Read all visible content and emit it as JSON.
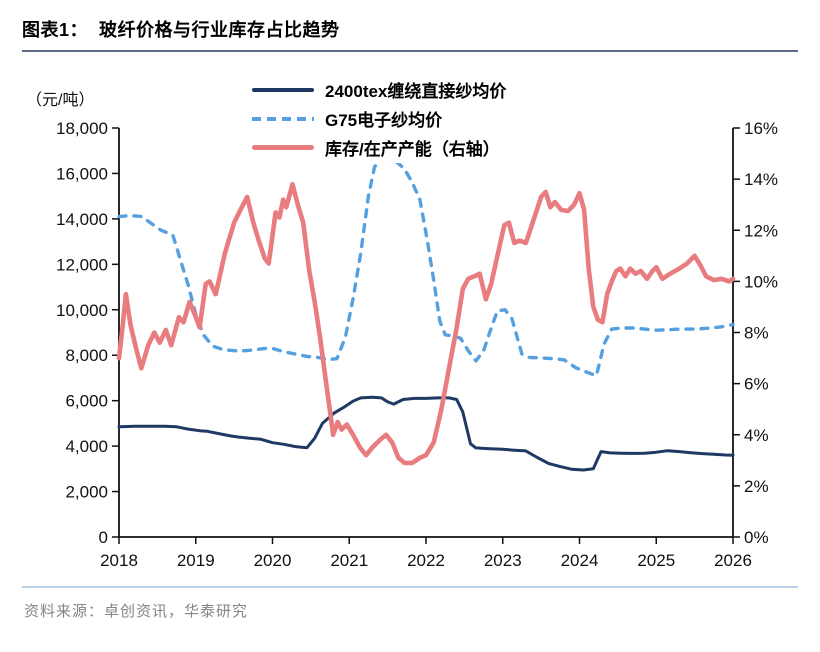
{
  "header": {
    "title": "图表1：  玻纤价格与行业库存占比趋势"
  },
  "chart": {
    "unit_label": "（元/吨）",
    "legend": [
      {
        "label": "2400tex缠绕直接纱均价",
        "color": "#1F3864",
        "style": "solid"
      },
      {
        "label": "G75电子纱均价",
        "color": "#56A0E0",
        "style": "dashed"
      },
      {
        "label": "库存/在产产能（右轴）",
        "color": "#E97C7E",
        "style": "solid-thick"
      }
    ]
  },
  "chart_data": {
    "type": "line",
    "title": "玻纤价格与行业库存占比趋势",
    "x_range": [
      2018,
      2026
    ],
    "x_ticks": [
      2018,
      2019,
      2020,
      2021,
      2022,
      2023,
      2024,
      2025,
      2026
    ],
    "grid": false,
    "legend_position": "top-center",
    "left_axis": {
      "title": "（元/吨）",
      "min": 0,
      "max": 18000,
      "tick_step": 2000,
      "tick_labels": [
        "0",
        "2,000",
        "4,000",
        "6,000",
        "8,000",
        "10,000",
        "12,000",
        "14,000",
        "16,000",
        "18,000"
      ]
    },
    "right_axis": {
      "min": 0,
      "max": 16,
      "tick_step": 2,
      "tick_labels": [
        "0%",
        "2%",
        "4%",
        "6%",
        "8%",
        "10%",
        "12%",
        "14%",
        "16%"
      ]
    },
    "series": [
      {
        "name": "2400tex缠绕直接纱均价",
        "axis": "left",
        "color": "#1F3864",
        "width": 3,
        "dash": null,
        "points": [
          [
            2018.0,
            4850
          ],
          [
            2018.2,
            4870
          ],
          [
            2018.4,
            4870
          ],
          [
            2018.6,
            4870
          ],
          [
            2018.75,
            4850
          ],
          [
            2018.9,
            4750
          ],
          [
            2019.05,
            4680
          ],
          [
            2019.15,
            4650
          ],
          [
            2019.3,
            4550
          ],
          [
            2019.45,
            4450
          ],
          [
            2019.55,
            4400
          ],
          [
            2019.7,
            4350
          ],
          [
            2019.85,
            4300
          ],
          [
            2020.0,
            4150
          ],
          [
            2020.15,
            4080
          ],
          [
            2020.3,
            3980
          ],
          [
            2020.45,
            3930
          ],
          [
            2020.55,
            4350
          ],
          [
            2020.65,
            5000
          ],
          [
            2020.8,
            5450
          ],
          [
            2020.95,
            5750
          ],
          [
            2021.05,
            5980
          ],
          [
            2021.15,
            6120
          ],
          [
            2021.3,
            6150
          ],
          [
            2021.42,
            6120
          ],
          [
            2021.5,
            5950
          ],
          [
            2021.58,
            5850
          ],
          [
            2021.7,
            6050
          ],
          [
            2021.85,
            6100
          ],
          [
            2022.0,
            6100
          ],
          [
            2022.15,
            6120
          ],
          [
            2022.3,
            6120
          ],
          [
            2022.4,
            6050
          ],
          [
            2022.48,
            5500
          ],
          [
            2022.58,
            4100
          ],
          [
            2022.65,
            3920
          ],
          [
            2022.8,
            3890
          ],
          [
            2023.0,
            3860
          ],
          [
            2023.15,
            3820
          ],
          [
            2023.3,
            3790
          ],
          [
            2023.45,
            3500
          ],
          [
            2023.6,
            3230
          ],
          [
            2023.75,
            3100
          ],
          [
            2023.9,
            2980
          ],
          [
            2024.05,
            2950
          ],
          [
            2024.18,
            3000
          ],
          [
            2024.28,
            3760
          ],
          [
            2024.4,
            3700
          ],
          [
            2024.55,
            3690
          ],
          [
            2024.7,
            3680
          ],
          [
            2024.85,
            3690
          ],
          [
            2025.0,
            3730
          ],
          [
            2025.15,
            3800
          ],
          [
            2025.3,
            3760
          ],
          [
            2025.45,
            3710
          ],
          [
            2025.6,
            3670
          ],
          [
            2025.75,
            3640
          ],
          [
            2025.9,
            3610
          ],
          [
            2026.0,
            3600
          ]
        ]
      },
      {
        "name": "G75电子纱均价",
        "axis": "left",
        "color": "#56A0E0",
        "width": 3.4,
        "dash": [
          7,
          8
        ],
        "points": [
          [
            2018.0,
            14100
          ],
          [
            2018.15,
            14150
          ],
          [
            2018.3,
            14100
          ],
          [
            2018.42,
            13800
          ],
          [
            2018.55,
            13500
          ],
          [
            2018.7,
            13300
          ],
          [
            2018.8,
            12200
          ],
          [
            2018.9,
            11100
          ],
          [
            2019.0,
            9800
          ],
          [
            2019.1,
            8900
          ],
          [
            2019.22,
            8400
          ],
          [
            2019.35,
            8250
          ],
          [
            2019.5,
            8200
          ],
          [
            2019.65,
            8200
          ],
          [
            2019.8,
            8250
          ],
          [
            2019.9,
            8300
          ],
          [
            2020.0,
            8300
          ],
          [
            2020.15,
            8150
          ],
          [
            2020.3,
            8050
          ],
          [
            2020.45,
            7950
          ],
          [
            2020.6,
            7900
          ],
          [
            2020.72,
            7800
          ],
          [
            2020.84,
            7850
          ],
          [
            2020.95,
            8800
          ],
          [
            2021.05,
            10500
          ],
          [
            2021.15,
            12500
          ],
          [
            2021.25,
            15000
          ],
          [
            2021.33,
            16300
          ],
          [
            2021.42,
            16550
          ],
          [
            2021.52,
            16600
          ],
          [
            2021.62,
            16500
          ],
          [
            2021.72,
            16200
          ],
          [
            2021.82,
            15600
          ],
          [
            2021.92,
            14850
          ],
          [
            2022.02,
            13000
          ],
          [
            2022.1,
            11300
          ],
          [
            2022.18,
            9500
          ],
          [
            2022.25,
            8900
          ],
          [
            2022.35,
            8850
          ],
          [
            2022.45,
            8750
          ],
          [
            2022.55,
            8200
          ],
          [
            2022.65,
            7750
          ],
          [
            2022.75,
            8200
          ],
          [
            2022.85,
            9200
          ],
          [
            2022.93,
            9950
          ],
          [
            2023.03,
            10000
          ],
          [
            2023.12,
            9600
          ],
          [
            2023.25,
            8050
          ],
          [
            2023.35,
            7900
          ],
          [
            2023.5,
            7880
          ],
          [
            2023.65,
            7850
          ],
          [
            2023.8,
            7800
          ],
          [
            2023.95,
            7450
          ],
          [
            2024.1,
            7250
          ],
          [
            2024.22,
            7100
          ],
          [
            2024.32,
            8500
          ],
          [
            2024.42,
            9150
          ],
          [
            2024.55,
            9200
          ],
          [
            2024.7,
            9200
          ],
          [
            2024.85,
            9150
          ],
          [
            2025.0,
            9100
          ],
          [
            2025.15,
            9120
          ],
          [
            2025.3,
            9150
          ],
          [
            2025.5,
            9150
          ],
          [
            2025.7,
            9200
          ],
          [
            2025.85,
            9250
          ],
          [
            2026.0,
            9350
          ]
        ]
      },
      {
        "name": "库存/在产产能（右轴）",
        "axis": "right",
        "color": "#E97C7E",
        "width": 4.6,
        "dash": null,
        "points": [
          [
            2018.0,
            7.0
          ],
          [
            2018.05,
            8.3
          ],
          [
            2018.09,
            9.5
          ],
          [
            2018.15,
            8.3
          ],
          [
            2018.22,
            7.4
          ],
          [
            2018.29,
            6.6
          ],
          [
            2018.38,
            7.5
          ],
          [
            2018.46,
            8.0
          ],
          [
            2018.53,
            7.6
          ],
          [
            2018.61,
            8.1
          ],
          [
            2018.68,
            7.5
          ],
          [
            2018.78,
            8.6
          ],
          [
            2018.84,
            8.4
          ],
          [
            2018.92,
            9.2
          ],
          [
            2019.0,
            8.6
          ],
          [
            2019.05,
            8.2
          ],
          [
            2019.13,
            9.9
          ],
          [
            2019.18,
            10.0
          ],
          [
            2019.26,
            9.5
          ],
          [
            2019.38,
            11.1
          ],
          [
            2019.5,
            12.3
          ],
          [
            2019.6,
            12.9
          ],
          [
            2019.67,
            13.3
          ],
          [
            2019.75,
            12.3
          ],
          [
            2019.82,
            11.6
          ],
          [
            2019.9,
            10.9
          ],
          [
            2019.95,
            10.7
          ],
          [
            2020.04,
            12.7
          ],
          [
            2020.09,
            12.5
          ],
          [
            2020.14,
            13.2
          ],
          [
            2020.18,
            12.9
          ],
          [
            2020.26,
            13.8
          ],
          [
            2020.33,
            13.0
          ],
          [
            2020.4,
            12.3
          ],
          [
            2020.48,
            10.4
          ],
          [
            2020.55,
            9.2
          ],
          [
            2020.62,
            7.8
          ],
          [
            2020.7,
            6.0
          ],
          [
            2020.76,
            4.7
          ],
          [
            2020.79,
            4.0
          ],
          [
            2020.85,
            4.5
          ],
          [
            2020.9,
            4.2
          ],
          [
            2020.97,
            4.4
          ],
          [
            2021.05,
            4.0
          ],
          [
            2021.14,
            3.5
          ],
          [
            2021.22,
            3.2
          ],
          [
            2021.3,
            3.5
          ],
          [
            2021.4,
            3.8
          ],
          [
            2021.48,
            4.0
          ],
          [
            2021.56,
            3.7
          ],
          [
            2021.64,
            3.1
          ],
          [
            2021.72,
            2.9
          ],
          [
            2021.82,
            2.9
          ],
          [
            2021.92,
            3.1
          ],
          [
            2022.0,
            3.2
          ],
          [
            2022.1,
            3.7
          ],
          [
            2022.2,
            5.0
          ],
          [
            2022.3,
            6.6
          ],
          [
            2022.4,
            8.2
          ],
          [
            2022.48,
            9.7
          ],
          [
            2022.55,
            10.1
          ],
          [
            2022.63,
            10.2
          ],
          [
            2022.7,
            10.3
          ],
          [
            2022.78,
            9.3
          ],
          [
            2022.85,
            9.9
          ],
          [
            2022.93,
            11.0
          ],
          [
            2023.02,
            12.2
          ],
          [
            2023.08,
            12.3
          ],
          [
            2023.15,
            11.5
          ],
          [
            2023.22,
            11.6
          ],
          [
            2023.3,
            11.5
          ],
          [
            2023.4,
            12.4
          ],
          [
            2023.5,
            13.3
          ],
          [
            2023.56,
            13.5
          ],
          [
            2023.62,
            12.9
          ],
          [
            2023.68,
            13.1
          ],
          [
            2023.76,
            12.8
          ],
          [
            2023.85,
            12.75
          ],
          [
            2023.93,
            13.0
          ],
          [
            2024.0,
            13.45
          ],
          [
            2024.06,
            12.8
          ],
          [
            2024.12,
            10.5
          ],
          [
            2024.18,
            9.0
          ],
          [
            2024.24,
            8.5
          ],
          [
            2024.3,
            8.4
          ],
          [
            2024.36,
            9.5
          ],
          [
            2024.42,
            10.0
          ],
          [
            2024.48,
            10.4
          ],
          [
            2024.53,
            10.5
          ],
          [
            2024.6,
            10.2
          ],
          [
            2024.66,
            10.5
          ],
          [
            2024.73,
            10.3
          ],
          [
            2024.8,
            10.4
          ],
          [
            2024.88,
            10.1
          ],
          [
            2024.95,
            10.4
          ],
          [
            2025.0,
            10.55
          ],
          [
            2025.08,
            10.1
          ],
          [
            2025.18,
            10.3
          ],
          [
            2025.3,
            10.5
          ],
          [
            2025.4,
            10.7
          ],
          [
            2025.5,
            11.0
          ],
          [
            2025.58,
            10.6
          ],
          [
            2025.65,
            10.2
          ],
          [
            2025.75,
            10.05
          ],
          [
            2025.85,
            10.1
          ],
          [
            2025.95,
            10.0
          ],
          [
            2026.0,
            10.1
          ]
        ]
      }
    ]
  },
  "footer": {
    "source": "资料来源：卓创资讯，华泰研究"
  }
}
